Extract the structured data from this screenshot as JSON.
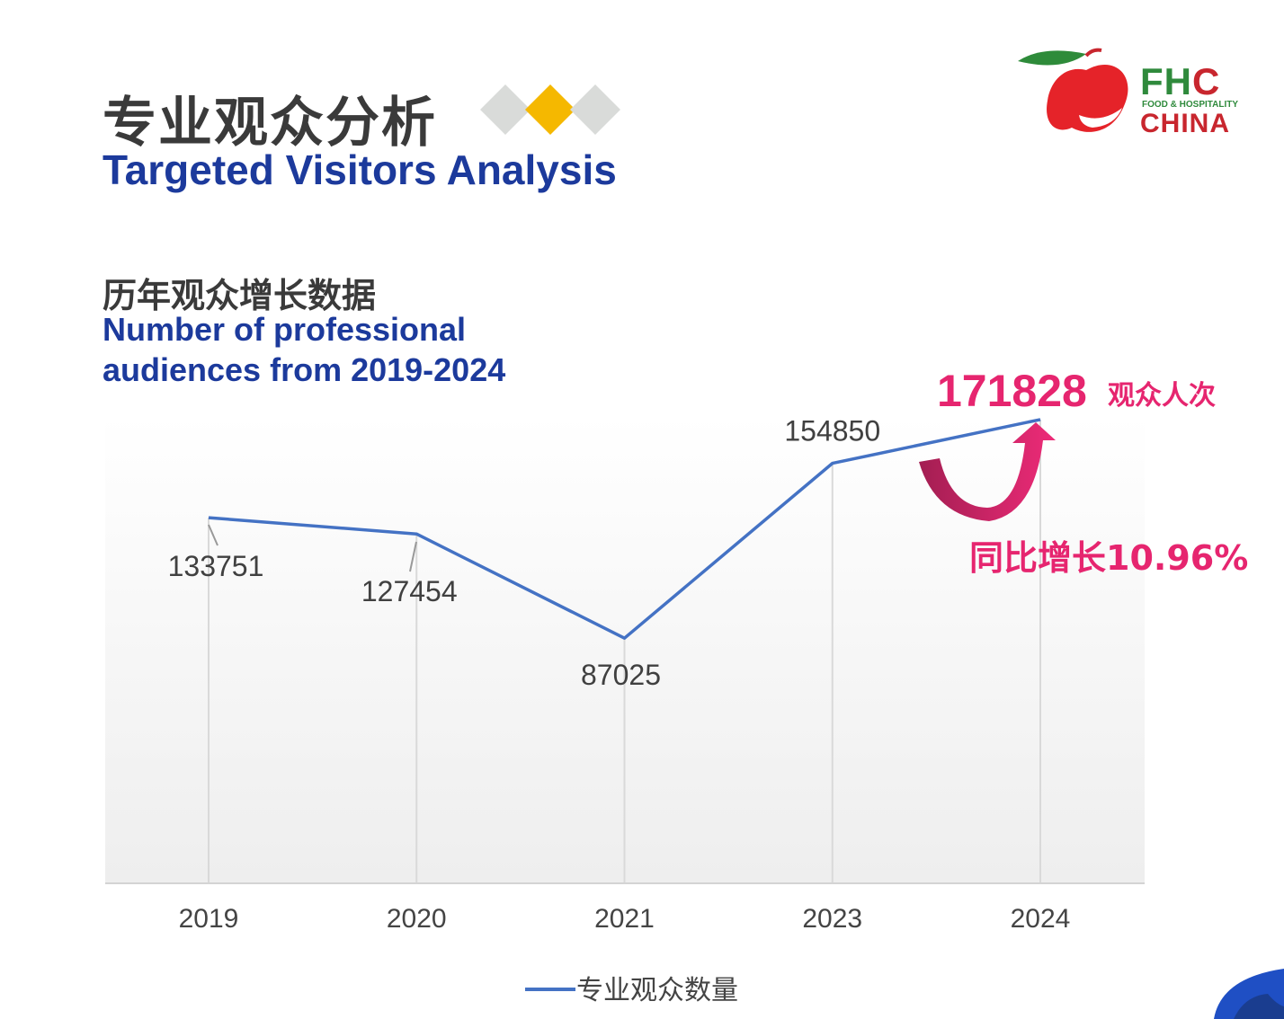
{
  "header": {
    "title_cn": "专业观众分析",
    "title_en": "Targeted Visitors Analysis",
    "diamond_colors": [
      "#d9dbd9",
      "#f5b800",
      "#d9dbd9"
    ]
  },
  "logo": {
    "fhc": "FH",
    "fhc_c": "C",
    "line": "FOOD & HOSPITALITY",
    "china": "CHINA"
  },
  "subtitle": {
    "cn": "历年观众增长数据",
    "en": "Number of professional audiences from 2019-2024"
  },
  "callout": {
    "value": "171828",
    "unit": "观众人次",
    "growth": "同比增长10.96%",
    "color": "#e6256f"
  },
  "chart_data": {
    "type": "line",
    "categories": [
      "2019",
      "2020",
      "2021",
      "2023",
      "2024"
    ],
    "series": [
      {
        "name": "专业观众数量",
        "values": [
          133751,
          127454,
          87025,
          154850,
          171828
        ],
        "data_labels": [
          "133751",
          "127454",
          "87025",
          "154850",
          ""
        ],
        "color": "#4472c4"
      }
    ],
    "legend_position": "bottom",
    "grid": "vertical"
  }
}
